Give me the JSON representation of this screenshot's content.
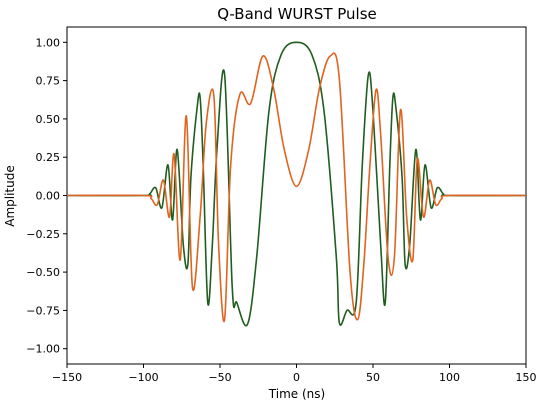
{
  "chart_data": {
    "type": "line",
    "title": "Q-Band WURST Pulse",
    "xlabel": "Time (ns)",
    "ylabel": "Amplitude",
    "xlim": [
      -150,
      150
    ],
    "ylim": [
      -1.1,
      1.1
    ],
    "x_ticks": [
      -150,
      -100,
      -50,
      0,
      50,
      100,
      150
    ],
    "y_ticks": [
      -1.0,
      -0.75,
      -0.5,
      -0.25,
      0.0,
      0.25,
      0.5,
      0.75,
      1.0
    ],
    "x_tick_labels": [
      "−150",
      "−100",
      "−50",
      "0",
      "50",
      "100",
      "150"
    ],
    "y_tick_labels": [
      "−1.00",
      "−0.75",
      "−0.50",
      "−0.25",
      "0.00",
      "0.25",
      "0.50",
      "0.75",
      "1.00"
    ],
    "grid": false,
    "series": [
      {
        "color": "#1f5e1f",
        "points": [
          [
            -150,
            0
          ],
          [
            -100,
            0
          ],
          [
            -96,
            0.01
          ],
          [
            -92,
            0.05
          ],
          [
            -88,
            -0.08
          ],
          [
            -84,
            0.2
          ],
          [
            -81,
            -0.16
          ],
          [
            -78,
            0.3
          ],
          [
            -74,
            -0.32
          ],
          [
            -71,
            -0.45
          ],
          [
            -69,
            0.12
          ],
          [
            -65,
            0.57
          ],
          [
            -63,
            0.64
          ],
          [
            -61,
            0.2
          ],
          [
            -58,
            -0.7
          ],
          [
            -55,
            -0.32
          ],
          [
            -52,
            0.3
          ],
          [
            -47,
            0.79
          ],
          [
            -42,
            -0.6
          ],
          [
            -39,
            -0.7
          ],
          [
            -32,
            -0.84
          ],
          [
            -26,
            -0.4
          ],
          [
            -18,
            0.55
          ],
          [
            -10,
            0.92
          ],
          [
            0,
            1.0
          ],
          [
            10,
            0.92
          ],
          [
            18,
            0.55
          ],
          [
            26,
            -0.4
          ],
          [
            28,
            -0.83
          ],
          [
            33,
            -0.75
          ],
          [
            39,
            -0.7
          ],
          [
            43,
            0.2
          ],
          [
            47,
            0.79
          ],
          [
            50,
            0.55
          ],
          [
            55,
            -0.32
          ],
          [
            58,
            -0.7
          ],
          [
            61,
            0.2
          ],
          [
            63,
            0.64
          ],
          [
            65,
            0.57
          ],
          [
            69,
            0.12
          ],
          [
            71,
            -0.45
          ],
          [
            74,
            -0.32
          ],
          [
            78,
            0.3
          ],
          [
            81,
            -0.16
          ],
          [
            84,
            0.2
          ],
          [
            88,
            -0.08
          ],
          [
            92,
            0.05
          ],
          [
            96,
            0.01
          ],
          [
            100,
            0
          ],
          [
            150,
            0
          ]
        ]
      },
      {
        "color": "#e06420",
        "points": [
          [
            -150,
            0
          ],
          [
            -100,
            0
          ],
          [
            -95,
            -0.02
          ],
          [
            -91,
            -0.06
          ],
          [
            -87,
            0.1
          ],
          [
            -83,
            -0.14
          ],
          [
            -80,
            0.27
          ],
          [
            -76,
            -0.42
          ],
          [
            -72,
            0.52
          ],
          [
            -68,
            -0.6
          ],
          [
            -63,
            -0.14
          ],
          [
            -59,
            0.47
          ],
          [
            -54,
            0.65
          ],
          [
            -51,
            -0.3
          ],
          [
            -47,
            -0.81
          ],
          [
            -43,
            0.2
          ],
          [
            -37,
            0.66
          ],
          [
            -30,
            0.6
          ],
          [
            -22,
            0.91
          ],
          [
            -15,
            0.7
          ],
          [
            -8,
            0.3
          ],
          [
            0,
            0.06
          ],
          [
            8,
            0.3
          ],
          [
            15,
            0.7
          ],
          [
            22,
            0.91
          ],
          [
            28,
            0.76
          ],
          [
            35,
            -0.5
          ],
          [
            40,
            -0.81
          ],
          [
            44,
            -0.45
          ],
          [
            48,
            0.2
          ],
          [
            52,
            0.69
          ],
          [
            55,
            0.4
          ],
          [
            60,
            -0.42
          ],
          [
            64,
            -0.4
          ],
          [
            68,
            0.56
          ],
          [
            72,
            -0.14
          ],
          [
            76,
            -0.42
          ],
          [
            79,
            0.24
          ],
          [
            83,
            -0.14
          ],
          [
            87,
            0.1
          ],
          [
            91,
            -0.06
          ],
          [
            95,
            -0.02
          ],
          [
            100,
            0
          ],
          [
            150,
            0
          ]
        ]
      }
    ]
  }
}
